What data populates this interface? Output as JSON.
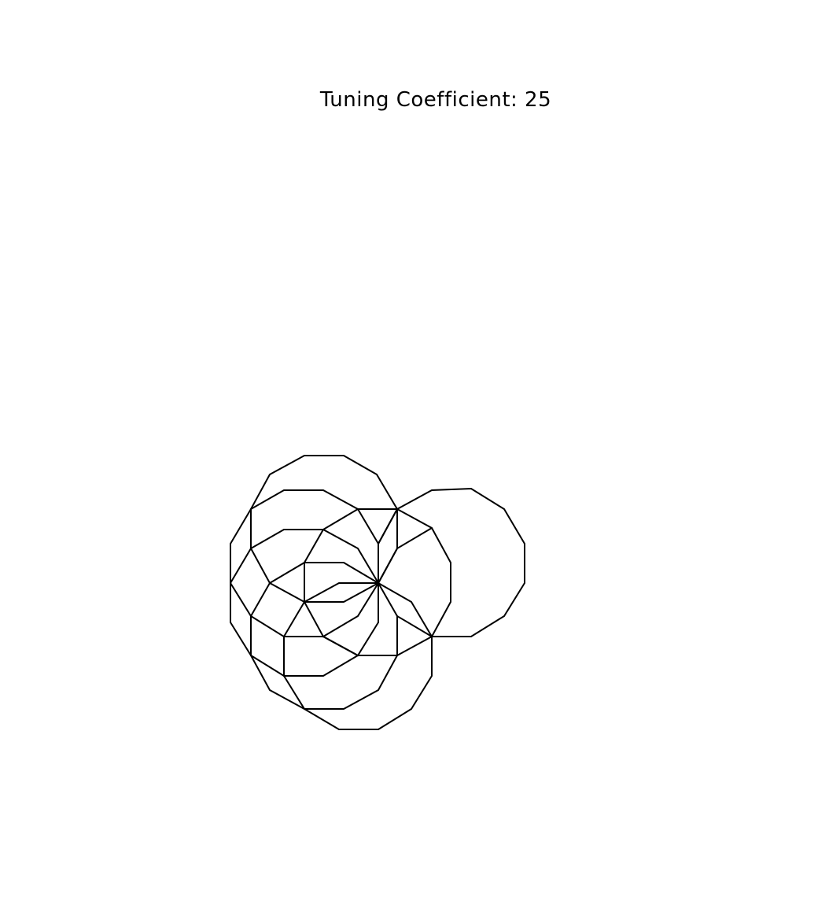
{
  "title": "Tuning Coefficient: 25",
  "colors": {
    "background": "#ffffff",
    "stroke": "#000000"
  }
}
